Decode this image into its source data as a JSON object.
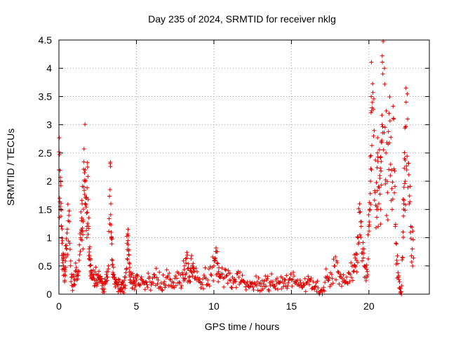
{
  "chart_data": {
    "type": "scatter",
    "title": "Day 235 of 2024, SRMTID for receiver nklg",
    "xlabel": "GPS time / hours",
    "ylabel": "SRMTID / TECUs",
    "xlim": [
      0,
      23.9
    ],
    "ylim": [
      0,
      4.5
    ],
    "xticks": [
      0,
      5,
      10,
      15,
      20
    ],
    "xtick_labels": [
      "0",
      "5",
      "10",
      "15",
      "20"
    ],
    "yticks": [
      0,
      0.5,
      1,
      1.5,
      2,
      2.5,
      3,
      3.5,
      4,
      4.5
    ],
    "ytick_labels": [
      "0",
      "0.5",
      "1",
      "1.5",
      "2",
      "2.5",
      "3",
      "3.5",
      "4",
      "4.5"
    ],
    "grid": true,
    "marker": "plus",
    "series": [
      {
        "name": "SRMTID",
        "color": "#e00000",
        "x": [
          0.0,
          0.05,
          0.1,
          0.15,
          0.2,
          0.25,
          0.3,
          0.35,
          0.4,
          0.45,
          0.5,
          0.6,
          0.7,
          0.8,
          0.9,
          1.0,
          1.1,
          1.2,
          1.3,
          1.4,
          1.45,
          1.5,
          1.55,
          1.6,
          1.65,
          1.7,
          1.75,
          1.8,
          1.85,
          1.9,
          1.95,
          2.0,
          2.05,
          2.1,
          2.2,
          2.3,
          2.4,
          2.5,
          2.6,
          2.7,
          2.8,
          2.9,
          3.0,
          3.1,
          3.2,
          3.3,
          3.35,
          3.4,
          3.45,
          3.5,
          3.6,
          3.7,
          3.8,
          3.9,
          4.0,
          4.1,
          4.2,
          4.3,
          4.4,
          4.45,
          4.5,
          4.55,
          4.6,
          4.7,
          4.8,
          4.9,
          5.0,
          5.2,
          5.4,
          5.6,
          5.8,
          6.0,
          6.2,
          6.4,
          6.6,
          6.8,
          7.0,
          7.2,
          7.4,
          7.6,
          7.8,
          8.0,
          8.1,
          8.2,
          8.3,
          8.4,
          8.5,
          8.6,
          8.7,
          8.8,
          9.0,
          9.2,
          9.4,
          9.6,
          9.8,
          10.0,
          10.1,
          10.2,
          10.3,
          10.4,
          10.6,
          10.8,
          11.0,
          11.2,
          11.4,
          11.6,
          11.8,
          12.0,
          12.2,
          12.4,
          12.6,
          12.8,
          13.0,
          13.2,
          13.4,
          13.6,
          13.8,
          14.0,
          14.2,
          14.4,
          14.6,
          14.8,
          15.0,
          15.2,
          15.4,
          15.6,
          15.8,
          16.0,
          16.2,
          16.4,
          16.6,
          16.8,
          17.0,
          17.2,
          17.4,
          17.6,
          17.8,
          18.0,
          18.2,
          18.4,
          18.6,
          18.8,
          19.0,
          19.1,
          19.2,
          19.3,
          19.4,
          19.5,
          19.6,
          19.7,
          19.8,
          19.9,
          20.0,
          20.05,
          20.1,
          20.15,
          20.2,
          20.3,
          20.4,
          20.5,
          20.55,
          20.6,
          20.7,
          20.75,
          20.8,
          20.85,
          20.9,
          21.0,
          21.1,
          21.2,
          21.3,
          21.4,
          21.5,
          21.6,
          21.7,
          21.8,
          21.9,
          22.0,
          22.1,
          22.2,
          22.25,
          22.3,
          22.35,
          22.4,
          22.5,
          22.6,
          22.7,
          22.8
        ],
        "y": [
          2.2,
          1.7,
          1.5,
          1.2,
          0.9,
          0.6,
          0.5,
          0.45,
          0.4,
          0.7,
          0.8,
          1.3,
          0.9,
          0.3,
          0.15,
          0.25,
          0.4,
          0.35,
          0.6,
          1.0,
          1.3,
          1.6,
          0.8,
          1.9,
          2.15,
          2.2,
          1.7,
          1.0,
          2.25,
          1.2,
          0.8,
          0.5,
          0.4,
          0.35,
          0.3,
          0.25,
          0.35,
          0.2,
          0.3,
          0.25,
          0.15,
          0.1,
          0.2,
          0.3,
          0.5,
          1.85,
          1.6,
          1.0,
          0.6,
          0.35,
          0.3,
          0.2,
          0.15,
          0.25,
          0.1,
          0.2,
          0.15,
          0.3,
          0.9,
          0.95,
          0.7,
          0.4,
          0.25,
          0.2,
          0.3,
          0.2,
          0.25,
          0.15,
          0.2,
          0.22,
          0.28,
          0.2,
          0.3,
          0.25,
          0.2,
          0.22,
          0.3,
          0.25,
          0.2,
          0.28,
          0.2,
          0.35,
          0.5,
          0.55,
          0.45,
          0.3,
          0.45,
          0.5,
          0.4,
          0.3,
          0.25,
          0.2,
          0.3,
          0.25,
          0.35,
          0.5,
          0.6,
          0.55,
          0.4,
          0.3,
          0.28,
          0.32,
          0.25,
          0.3,
          0.22,
          0.3,
          0.25,
          0.2,
          0.15,
          0.18,
          0.2,
          0.22,
          0.2,
          0.18,
          0.25,
          0.2,
          0.22,
          0.25,
          0.2,
          0.22,
          0.25,
          0.2,
          0.25,
          0.22,
          0.25,
          0.2,
          0.15,
          0.2,
          0.25,
          0.22,
          0.2,
          0.0,
          0.0,
          0.3,
          0.25,
          0.35,
          0.5,
          0.4,
          0.3,
          0.25,
          0.2,
          0.35,
          0.4,
          0.5,
          0.6,
          1.0,
          1.6,
          1.2,
          0.8,
          0.5,
          0.3,
          0.4,
          1.2,
          1.5,
          2.0,
          3.5,
          3.3,
          2.8,
          1.8,
          1.5,
          2.5,
          1.2,
          2.1,
          1.5,
          2.7,
          3.0,
          3.9,
          4.0,
          2.5,
          1.8,
          3.2,
          2.3,
          1.5,
          3.1,
          1.2,
          0.6,
          0.3,
          0.1,
          0.0,
          1.1,
          1.6,
          2.4,
          2.0,
          3.4,
          3.1,
          1.6,
          1.2,
          0.8
        ],
        "scatter_samples_per_anchor": 4
      }
    ]
  }
}
